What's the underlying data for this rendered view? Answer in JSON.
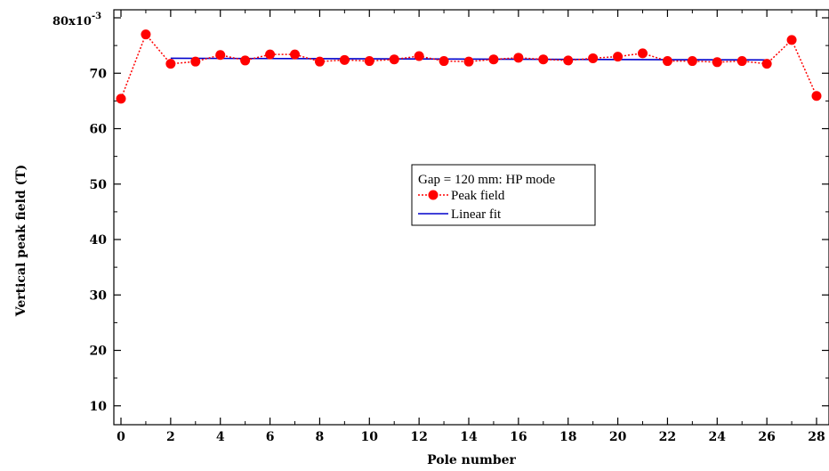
{
  "chart_data": {
    "type": "line",
    "title": "",
    "xlabel": "Pole number",
    "ylabel": "Vertical peak field (T)",
    "y_multiplier_label": "80x10",
    "y_multiplier_exp": "-3",
    "xlim": [
      0,
      28
    ],
    "ylim": [
      9,
      80
    ],
    "x_ticks": [
      0,
      2,
      4,
      6,
      8,
      10,
      12,
      14,
      16,
      18,
      20,
      22,
      24,
      26,
      28
    ],
    "y_ticks": [
      10,
      20,
      30,
      40,
      50,
      60,
      70
    ],
    "grid": false,
    "legend": {
      "placement": "center-right",
      "heading": "Gap = 120 mm:  HP mode",
      "entries": [
        "Peak field",
        "Linear fit"
      ]
    },
    "colors": {
      "peak": "#ff0000",
      "fit": "#0000cc"
    },
    "series": [
      {
        "name": "Peak field",
        "style": "dotted-line-circle-markers",
        "x": [
          0,
          1,
          2,
          3,
          4,
          5,
          6,
          7,
          8,
          9,
          10,
          11,
          12,
          13,
          14,
          15,
          16,
          17,
          18,
          19,
          20,
          21,
          22,
          23,
          24,
          25,
          26,
          27,
          28
        ],
        "values": [
          65.4,
          77.0,
          71.7,
          72.1,
          73.3,
          72.3,
          73.4,
          73.4,
          72.1,
          72.4,
          72.2,
          72.5,
          73.1,
          72.2,
          72.1,
          72.5,
          72.8,
          72.5,
          72.3,
          72.7,
          73.0,
          73.6,
          72.2,
          72.2,
          72.0,
          72.2,
          71.7,
          76.0,
          65.9
        ]
      },
      {
        "name": "Linear fit",
        "style": "solid-line",
        "x": [
          2,
          26
        ],
        "values": [
          72.7,
          72.4
        ]
      }
    ]
  }
}
